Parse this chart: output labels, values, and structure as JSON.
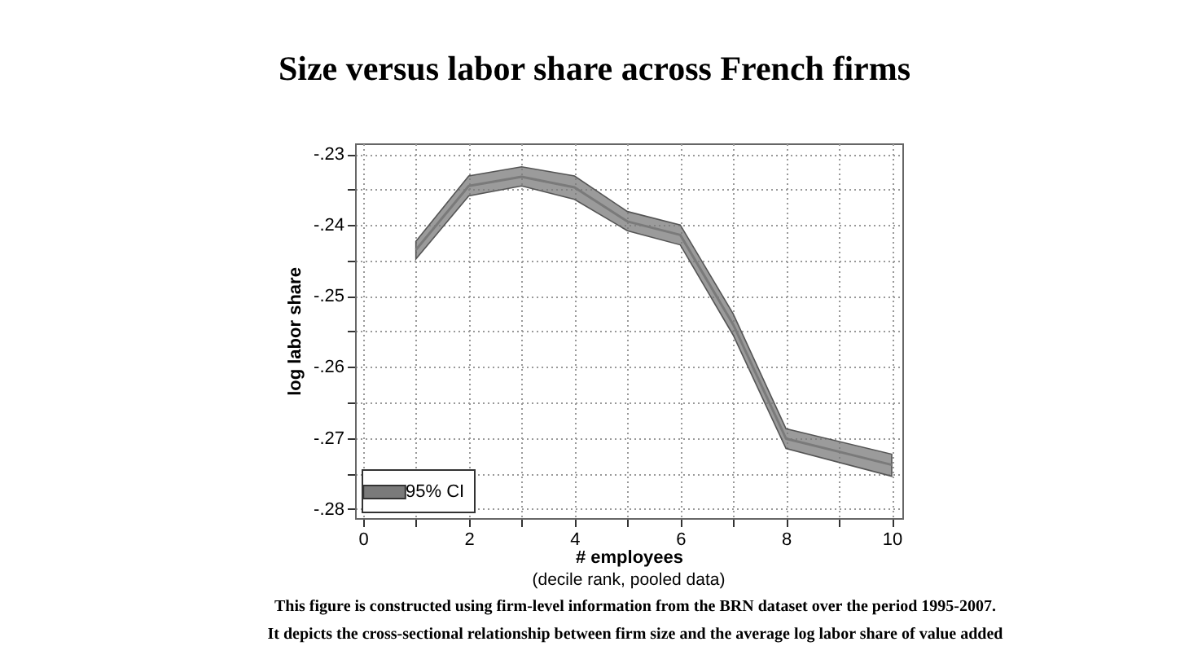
{
  "chart_data": {
    "type": "line",
    "title": "Size versus labor share across French firms",
    "xlabel": "# employees",
    "ylabel": "log labor share",
    "x": [
      1,
      2,
      3,
      4,
      5,
      6,
      7,
      8,
      10
    ],
    "series": [
      {
        "name": "95% CI",
        "color": "#7a7a7a",
        "values": [
          -0.2435,
          -0.2345,
          -0.2332,
          -0.2347,
          -0.2395,
          -0.2414,
          -0.254,
          -0.2701,
          -0.2738
        ],
        "lower": [
          -0.2448,
          -0.2359,
          -0.2345,
          -0.2364,
          -0.2408,
          -0.2428,
          -0.2555,
          -0.2715,
          -0.2754
        ],
        "upper": [
          -0.2423,
          -0.2331,
          -0.2318,
          -0.2331,
          -0.2381,
          -0.24,
          -0.2525,
          -0.2687,
          -0.2723
        ]
      }
    ],
    "xlim": [
      -0.15,
      10.2
    ],
    "ylim": [
      -0.2813,
      -0.2285
    ],
    "xticks": [
      0,
      {
        "value": 1,
        "label": null
      },
      2,
      {
        "value": 3,
        "label": null
      },
      4,
      {
        "value": 5,
        "label": null
      },
      6,
      {
        "value": 7,
        "label": null
      },
      8,
      {
        "value": 9,
        "label": null
      },
      10
    ],
    "yticks": [
      {
        "value": -0.28,
        "label": "-.28"
      },
      {
        "value": -0.275,
        "label": null
      },
      {
        "value": -0.27,
        "label": "-.27"
      },
      {
        "value": -0.265,
        "label": null
      },
      {
        "value": -0.26,
        "label": "-.26"
      },
      {
        "value": -0.255,
        "label": null
      },
      {
        "value": -0.25,
        "label": "-.25"
      },
      {
        "value": -0.245,
        "label": null
      },
      {
        "value": -0.24,
        "label": "-.24"
      },
      {
        "value": -0.235,
        "label": null
      },
      {
        "value": -0.23,
        "label": "-.23"
      }
    ],
    "grid": true,
    "legend": "bottom left",
    "marker": "none",
    "line_style": "solid",
    "annotations": [
      "(decile rank, pooled data)",
      "This figure is constructed using firm-level information from the BRN dataset over the period 1995-2007.",
      "It depicts the cross-sectional relationship between firm size and the average log labor share of value added"
    ]
  }
}
